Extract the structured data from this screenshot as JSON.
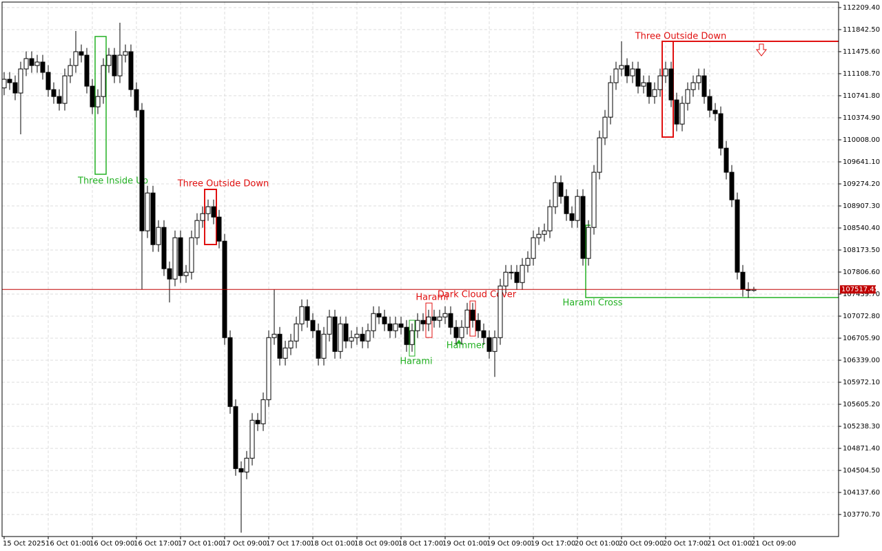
{
  "chart_data": {
    "type": "candlestick",
    "categories": [
      "15 Oct 2025",
      null,
      null,
      null,
      null,
      null,
      null,
      null,
      "16 Oct 01:00",
      null,
      null,
      null,
      null,
      null,
      null,
      null,
      "16 Oct 09:00",
      null,
      null,
      null,
      null,
      null,
      null,
      null,
      "16 Oct 17:00",
      null,
      null,
      null,
      null,
      null,
      null,
      null,
      "17 Oct 01:00",
      null,
      null,
      null,
      null,
      null,
      null,
      null,
      "17 Oct 09:00",
      null,
      null,
      null,
      null,
      null,
      null,
      null,
      "17 Oct 17:00",
      null,
      null,
      null,
      null,
      null,
      null,
      null,
      "18 Oct 01:00",
      null,
      null,
      null,
      null,
      null,
      null,
      null,
      "18 Oct 09:00",
      null,
      null,
      null,
      null,
      null,
      null,
      null,
      "18 Oct 17:00",
      null,
      null,
      null,
      null,
      null,
      null,
      null,
      "19 Oct 01:00",
      null,
      null,
      null,
      null,
      null,
      null,
      null,
      "19 Oct 09:00",
      null,
      null,
      null,
      null,
      null,
      null,
      null,
      "19 Oct 17:00",
      null,
      null,
      null,
      null,
      null,
      null,
      null,
      "20 Oct 01:00",
      null,
      null,
      null,
      null,
      null,
      null,
      null,
      "20 Oct 09:00",
      null,
      null,
      null,
      null,
      null,
      null,
      null,
      "20 Oct 17:00",
      null,
      null,
      null,
      null,
      null,
      null,
      null,
      "21 Oct 01:00",
      null,
      null,
      null,
      null,
      null,
      null,
      null,
      "21 Oct 09:00"
    ],
    "open": [
      110872,
      111016,
      110959,
      110787,
      111188,
      111360,
      111245,
      111303,
      111131,
      110844,
      110729,
      110615,
      111073,
      111245,
      111475,
      111417,
      110901,
      110557,
      110729,
      111245,
      111417,
      111073,
      111417,
      111475,
      110844,
      110500,
      108493,
      109123,
      108263,
      108550,
      107862,
      107690,
      108378,
      107747,
      107804,
      108378,
      108665,
      108779,
      108894,
      108722,
      108321,
      106715,
      105568,
      104535,
      104478,
      104708,
      105339,
      105281,
      105682,
      106715,
      106772,
      106371,
      106543,
      106658,
      106944,
      107231,
      107002,
      106830,
      106371,
      106772,
      107059,
      106485,
      106944,
      106658,
      106715,
      106772,
      106658,
      106830,
      107116,
      107059,
      106944,
      106830,
      106944,
      106887,
      106600,
      106830,
      107002,
      106944,
      107059,
      107002,
      107059,
      107116,
      106887,
      106715,
      106887,
      107174,
      107002,
      106830,
      106715,
      106485,
      106715,
      107575,
      107804,
      107804,
      107632,
      107919,
      108034,
      108378,
      108435,
      108493,
      108894,
      109295,
      109066,
      108779,
      108665,
      109066,
      108034,
      108550,
      109468,
      110041,
      110385,
      110959,
      111188,
      111245,
      111073,
      111188,
      110901,
      110959,
      110729,
      110844,
      111073,
      111188,
      110672,
      110270,
      110615,
      110844,
      110959,
      111073,
      110729,
      110500,
      110443,
      109869,
      109468,
      109009,
      107804,
      107518,
      107500
    ],
    "high": [
      111136,
      111136,
      111079,
      111308,
      111480,
      111480,
      111423,
      111423,
      111251,
      110964,
      110849,
      111193,
      111365,
      111819,
      111595,
      111537,
      111021,
      110849,
      111365,
      111537,
      111537,
      111957,
      111595,
      111595,
      110964,
      110620,
      109243,
      109243,
      108670,
      108670,
      107982,
      108498,
      108498,
      107924,
      108498,
      108785,
      108899,
      109014,
      109014,
      108842,
      108441,
      106835,
      105688,
      104655,
      104828,
      105459,
      105459,
      105802,
      106835,
      107518,
      106892,
      106663,
      106778,
      107064,
      107351,
      107351,
      107122,
      106950,
      106892,
      107179,
      107179,
      107064,
      107064,
      106835,
      106892,
      106892,
      106950,
      107236,
      107236,
      107179,
      107064,
      107064,
      107064,
      107007,
      106950,
      107122,
      107122,
      107179,
      107179,
      107179,
      107236,
      107236,
      107007,
      107007,
      107294,
      107294,
      107122,
      106950,
      106835,
      106835,
      107695,
      107924,
      107924,
      107924,
      108039,
      108154,
      108498,
      108555,
      108613,
      109014,
      109415,
      109415,
      109186,
      108899,
      109186,
      109186,
      108670,
      109588,
      110161,
      110505,
      111079,
      111308,
      111647,
      111365,
      111308,
      111308,
      111079,
      111079,
      110964,
      111193,
      111308,
      111308,
      110792,
      110735,
      110964,
      111079,
      111193,
      111193,
      110849,
      110620,
      110563,
      109989,
      109588,
      109129,
      107924,
      107638,
      107560
    ],
    "low": [
      110752,
      110839,
      110667,
      110100,
      111068,
      111125,
      111125,
      111011,
      110724,
      110609,
      110495,
      110495,
      110953,
      111125,
      111297,
      110781,
      110437,
      110437,
      110609,
      111125,
      110953,
      110953,
      111297,
      110724,
      110380,
      107518,
      108373,
      108143,
      108143,
      107742,
      107300,
      107570,
      107627,
      107627,
      107684,
      108258,
      108545,
      108659,
      108602,
      108201,
      106595,
      105448,
      104415,
      103469,
      104358,
      104588,
      105161,
      105161,
      105562,
      106595,
      106251,
      106251,
      106423,
      106538,
      106824,
      106882,
      106710,
      106251,
      106251,
      106652,
      106365,
      106365,
      106538,
      106538,
      106595,
      106538,
      106538,
      106710,
      106939,
      106824,
      106710,
      106710,
      106767,
      106480,
      106480,
      106710,
      106824,
      106824,
      106882,
      106882,
      106939,
      106767,
      106595,
      106595,
      106767,
      106882,
      106710,
      106595,
      106365,
      106061,
      106595,
      107455,
      107684,
      107512,
      107512,
      107799,
      107914,
      108258,
      108315,
      108373,
      108774,
      108946,
      108659,
      108545,
      108545,
      107914,
      107914,
      108430,
      109348,
      109921,
      110265,
      110839,
      111068,
      110953,
      110953,
      110781,
      110781,
      110609,
      110609,
      110724,
      110953,
      110552,
      110150,
      110150,
      110495,
      110724,
      110839,
      110609,
      110380,
      110323,
      109749,
      109348,
      108889,
      107684,
      107398,
      107380,
      107480
    ],
    "close": [
      111016,
      110959,
      110787,
      111188,
      111360,
      111245,
      111303,
      111131,
      110844,
      110729,
      110615,
      111073,
      111245,
      111475,
      111417,
      110901,
      110557,
      110729,
      111245,
      111417,
      111073,
      111417,
      111475,
      110844,
      110500,
      108493,
      109123,
      108263,
      108550,
      107862,
      107690,
      108378,
      107747,
      107804,
      108378,
      108665,
      108779,
      108894,
      108722,
      108321,
      106715,
      105568,
      104535,
      104478,
      104708,
      105339,
      105281,
      105682,
      106715,
      106772,
      106371,
      106543,
      106658,
      106944,
      107231,
      107002,
      106830,
      106371,
      106772,
      107059,
      106485,
      106944,
      106658,
      106715,
      106772,
      106658,
      106830,
      107116,
      107059,
      106944,
      106830,
      106944,
      106887,
      106600,
      106830,
      107002,
      106944,
      107059,
      107002,
      107059,
      107116,
      106887,
      106715,
      106887,
      107174,
      107002,
      106830,
      106715,
      106485,
      106715,
      107575,
      107804,
      107804,
      107632,
      107919,
      108034,
      108378,
      108435,
      108493,
      108894,
      109295,
      109066,
      108779,
      108665,
      109066,
      108034,
      108550,
      109468,
      110041,
      110385,
      110959,
      111188,
      111245,
      111073,
      111188,
      110901,
      110959,
      110729,
      110844,
      111073,
      111188,
      110672,
      110270,
      110615,
      110844,
      110959,
      111073,
      110729,
      110500,
      110443,
      109869,
      109468,
      109009,
      107804,
      107518,
      107500,
      107517.45
    ],
    "up_color": "#ffffff",
    "down_color": "#000000",
    "ylim": [
      103403.8,
      112301.1
    ],
    "yticks": [
      {
        "value": 112209.4,
        "label": "112209.40"
      },
      {
        "value": 111842.5,
        "label": "111842.50"
      },
      {
        "value": 111475.6,
        "label": "111475.60"
      },
      {
        "value": 111108.7,
        "label": "111108.70"
      },
      {
        "value": 110741.8,
        "label": "110741.80"
      },
      {
        "value": 110374.9,
        "label": "110374.90"
      },
      {
        "value": 110008,
        "label": "110008.00"
      },
      {
        "value": 109641.1,
        "label": "109641.10"
      },
      {
        "value": 109274.2,
        "label": "109274.20"
      },
      {
        "value": 108907.3,
        "label": "108907.30"
      },
      {
        "value": 108540.4,
        "label": "108540.40"
      },
      {
        "value": 108173.5,
        "label": "108173.50"
      },
      {
        "value": 107806.6,
        "label": "107806.60"
      },
      {
        "value": 107439.7,
        "label": "107439.70"
      },
      {
        "value": 107072.8,
        "label": "107072.80"
      },
      {
        "value": 106705.9,
        "label": "106705.90"
      },
      {
        "value": 106339,
        "label": "106339.00"
      },
      {
        "value": 105972.1,
        "label": "105972.10"
      },
      {
        "value": 105605.2,
        "label": "105605.20"
      },
      {
        "value": 105238.3,
        "label": "105238.30"
      },
      {
        "value": 104871.4,
        "label": "104871.40"
      },
      {
        "value": 104504.5,
        "label": "104504.50"
      },
      {
        "value": 104137.6,
        "label": "104137.60"
      },
      {
        "value": 103770.7,
        "label": "103770.70"
      }
    ],
    "grid": true,
    "current_price": 107517.45,
    "current_price_color": "#c00000",
    "annotations": [
      {
        "text": "Three Inside Up",
        "color": "#22b022"
      },
      {
        "text": "Three Outside Down",
        "color": "#e01010"
      },
      {
        "text": "Harami",
        "color": "#22b022"
      },
      {
        "text": "Harami",
        "color": "#e01010"
      },
      {
        "text": "Dark Cloud Cover",
        "color": "#e01010"
      },
      {
        "text": "Hammer",
        "color": "#22b022"
      },
      {
        "text": "Harami Cross",
        "color": "#22b022"
      },
      {
        "text": "Three Outside Down",
        "color": "#e01010"
      }
    ]
  }
}
